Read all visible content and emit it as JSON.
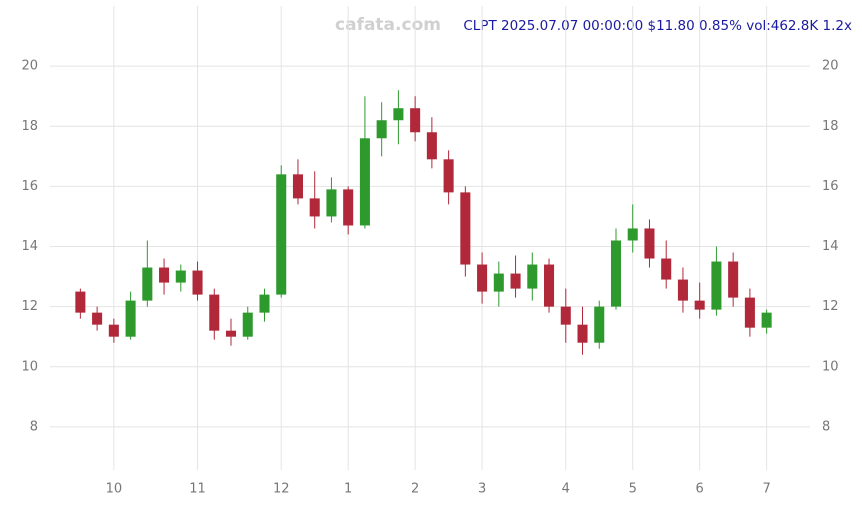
{
  "chart_data": {
    "type": "candlestick",
    "title": "CLPT 2025.07.07 00:00:00 $11.80 0.85% vol:462.8K 1.2x",
    "watermark": "cafata.com",
    "categories": [
      null,
      null,
      "10",
      null,
      null,
      null,
      null,
      "11",
      null,
      null,
      null,
      null,
      "12",
      null,
      null,
      null,
      "1",
      null,
      null,
      null,
      "2",
      null,
      null,
      null,
      "3",
      null,
      null,
      null,
      null,
      "4",
      null,
      null,
      null,
      "5",
      null,
      null,
      null,
      "6",
      null,
      null,
      null,
      "7"
    ],
    "open": [
      12.5,
      11.8,
      11.4,
      11.0,
      12.2,
      13.3,
      12.8,
      13.2,
      12.4,
      11.2,
      11.0,
      11.8,
      12.4,
      16.4,
      15.6,
      15.0,
      15.9,
      14.7,
      17.6,
      18.2,
      18.6,
      17.8,
      16.9,
      15.8,
      13.4,
      12.5,
      13.1,
      12.6,
      13.4,
      12.0,
      11.4,
      10.8,
      12.0,
      14.2,
      14.6,
      13.6,
      12.9,
      12.2,
      11.9,
      13.5,
      12.3,
      11.3
    ],
    "high": [
      12.6,
      12.0,
      11.6,
      12.5,
      14.2,
      13.6,
      13.4,
      13.5,
      12.6,
      11.6,
      12.0,
      12.6,
      16.7,
      16.9,
      16.5,
      16.3,
      16.0,
      19.0,
      18.8,
      19.2,
      19.0,
      18.3,
      17.2,
      16.0,
      13.8,
      13.5,
      13.7,
      13.8,
      13.6,
      12.6,
      12.0,
      12.2,
      14.6,
      15.4,
      14.9,
      14.2,
      13.3,
      12.8,
      14.0,
      13.8,
      12.6,
      11.9
    ],
    "low": [
      11.6,
      11.2,
      10.8,
      10.9,
      12.0,
      12.4,
      12.5,
      12.2,
      10.9,
      10.7,
      10.9,
      11.5,
      12.3,
      15.4,
      14.6,
      14.8,
      14.4,
      14.6,
      17.0,
      17.4,
      17.5,
      16.6,
      15.4,
      13.0,
      12.1,
      12.0,
      12.3,
      12.2,
      11.8,
      10.8,
      10.4,
      10.6,
      11.9,
      13.8,
      13.3,
      12.6,
      11.8,
      11.6,
      11.7,
      12.0,
      11.0,
      11.1
    ],
    "close": [
      11.8,
      11.4,
      11.0,
      12.2,
      13.3,
      12.8,
      13.2,
      12.4,
      11.2,
      11.0,
      11.8,
      12.4,
      16.4,
      15.6,
      15.0,
      15.9,
      14.7,
      17.6,
      18.2,
      18.6,
      17.8,
      16.9,
      15.8,
      13.4,
      12.5,
      13.1,
      12.6,
      13.4,
      12.0,
      11.4,
      10.8,
      12.0,
      14.2,
      14.6,
      13.6,
      12.9,
      12.2,
      11.9,
      13.5,
      12.3,
      11.3,
      11.8
    ],
    "up_color": "#2e9a2e",
    "down_color": "#b0283a",
    "ylim": [
      6,
      22
    ],
    "yticks": [
      8,
      10,
      12,
      14,
      16,
      18,
      20
    ],
    "grid": true
  }
}
